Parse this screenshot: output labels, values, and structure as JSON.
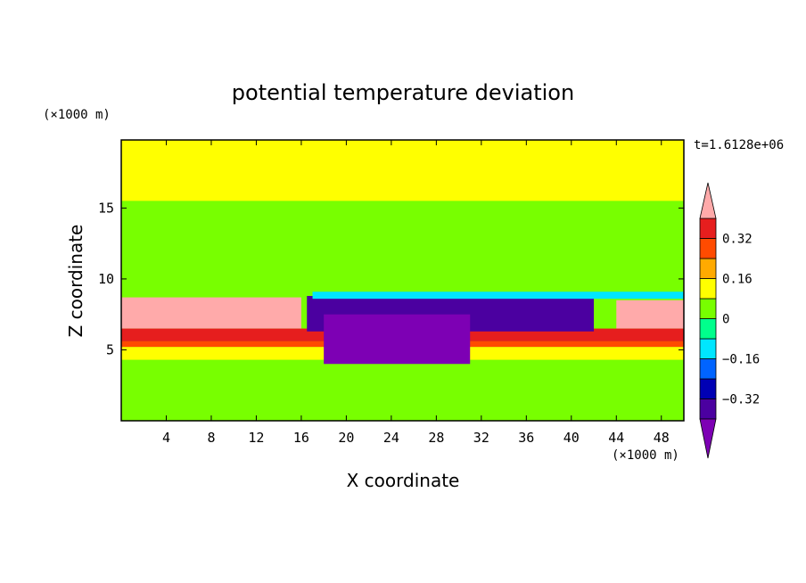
{
  "chart_data": {
    "type": "heatmap",
    "title": "potential temperature deviation",
    "xlabel": "X coordinate",
    "ylabel": "Z coordinate",
    "x_unit": "(×1000 m)",
    "y_unit": "(×1000 m)",
    "time_label": "t=1.6128e+06",
    "xlim": [
      0,
      50
    ],
    "ylim": [
      0,
      19.8
    ],
    "x_ticks": [
      4,
      8,
      12,
      16,
      20,
      24,
      28,
      32,
      36,
      40,
      44,
      48
    ],
    "y_ticks": [
      5,
      10,
      15
    ],
    "colorbar": {
      "levels": [
        -0.4,
        -0.32,
        -0.24,
        -0.16,
        -0.08,
        0,
        0.08,
        0.16,
        0.24,
        0.32,
        0.4
      ],
      "tick_labels": [
        "0.32",
        "0.16",
        "0",
        "−0.16",
        "−0.32"
      ],
      "tick_values": [
        0.32,
        0.16,
        0,
        -0.16,
        -0.32
      ],
      "colors": [
        "#7d00b4",
        "#4b00a0",
        "#0000b4",
        "#0064ff",
        "#00e6ff",
        "#00ff8c",
        "#78ff00",
        "#ffff00",
        "#ffaa00",
        "#ff4b00",
        "#e61e1e",
        "#ffaaaa"
      ],
      "extend": "both"
    },
    "regions": [
      {
        "value": 0.05,
        "z": [
          0,
          19.8
        ],
        "x": [
          0,
          50
        ]
      },
      {
        "value": 0.1,
        "z": [
          15.5,
          19.8
        ],
        "x": [
          0,
          50
        ]
      },
      {
        "value": 0.02,
        "z": [
          10,
          15.5
        ],
        "x": [
          0,
          50
        ]
      },
      {
        "value": 0.42,
        "z": [
          6.5,
          8.7
        ],
        "x": [
          0,
          16
        ]
      },
      {
        "value": 0.42,
        "z": [
          6.5,
          8.5
        ],
        "x": [
          44,
          50
        ]
      },
      {
        "value": 0.35,
        "z": [
          5.6,
          6.5
        ],
        "x": [
          0,
          50
        ]
      },
      {
        "value": 0.25,
        "z": [
          5.2,
          5.6
        ],
        "x": [
          0,
          50
        ]
      },
      {
        "value": 0.12,
        "z": [
          4.3,
          5.2
        ],
        "x": [
          0,
          50
        ]
      },
      {
        "value": -0.34,
        "z": [
          6.3,
          8.8
        ],
        "x": [
          16.5,
          42
        ]
      },
      {
        "value": -0.4,
        "z": [
          4,
          7.5
        ],
        "x": [
          18,
          31
        ]
      },
      {
        "value": -0.12,
        "z": [
          8.6,
          9.1
        ],
        "x": [
          17,
          50
        ]
      },
      {
        "value": 0.06,
        "z": [
          0,
          4
        ],
        "x": [
          0,
          50
        ]
      }
    ]
  }
}
